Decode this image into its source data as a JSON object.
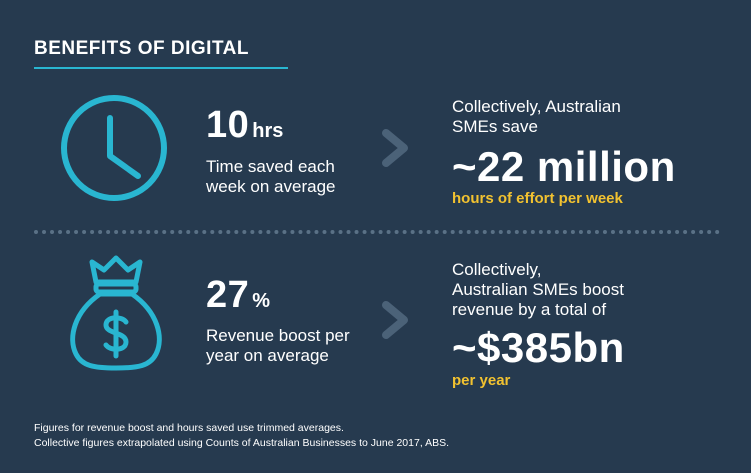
{
  "title": "BENEFITS OF DIGITAL",
  "colors": {
    "background": "#263a4f",
    "accent": "#29b6d1",
    "highlight": "#f2c230",
    "chevron": "#4b6278"
  },
  "rows": [
    {
      "icon": "clock-icon",
      "stat_value": "10",
      "stat_unit": "hrs",
      "stat_label_line1": "Time saved each",
      "stat_label_line2": "week on average",
      "collective_line1": "Collectively, Australian",
      "collective_line2": "SMEs save",
      "collective_line3": "",
      "figure": "~22 million",
      "figure_caption": "hours of effort per week"
    },
    {
      "icon": "money-bag-icon",
      "stat_value": "27",
      "stat_unit": "%",
      "stat_label_line1": "Revenue boost per",
      "stat_label_line2": "year on average",
      "collective_line1": "Collectively,",
      "collective_line2": "Australian SMEs boost",
      "collective_line3": "revenue by a total of",
      "figure": "~$385bn",
      "figure_caption": "per year"
    }
  ],
  "footnotes": [
    "Figures for revenue boost and hours saved use trimmed averages.",
    "Collective figures extrapolated using Counts of Australian Businesses to June 2017, ABS."
  ]
}
